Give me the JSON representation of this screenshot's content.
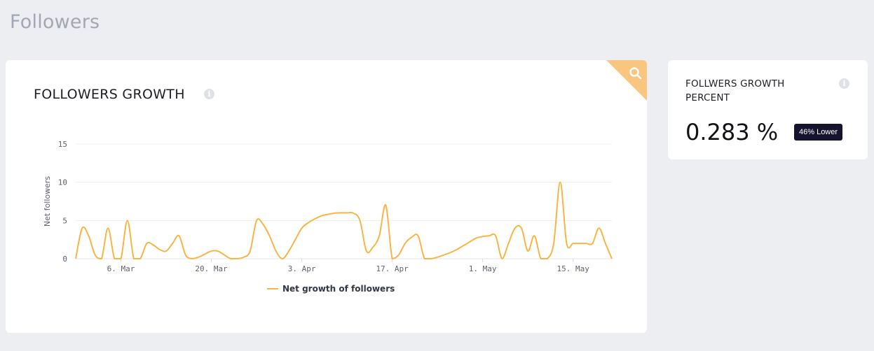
{
  "page": {
    "title": "Followers"
  },
  "growth_card": {
    "title": "FOLLOWERS GROWTH",
    "info_icon": "info-icon",
    "zoom_icon": "search-icon",
    "accent_color": "#f8c67f"
  },
  "percent_card": {
    "title": "FOLLWERS GROWTH PERCENT",
    "info_icon": "info-icon",
    "value": "0.283 %",
    "badge": "46% Lower",
    "badge_color": "#15132e"
  },
  "chart_data": {
    "type": "line",
    "ylabel": "Net followers",
    "xlabel": "",
    "ylim": [
      0,
      15
    ],
    "y_ticks": [
      0,
      5,
      10,
      15
    ],
    "x_ticks": [
      "6. Mar",
      "20. Mar",
      "3. Apr",
      "17. Apr",
      "1. May",
      "15. May"
    ],
    "x_tick_days": [
      6,
      20,
      34,
      48,
      62,
      76
    ],
    "grid": true,
    "legend_position": "bottom-center",
    "series": [
      {
        "name": "Net growth of followers",
        "color": "#f7b546",
        "points": [
          [
            -1,
            0
          ],
          [
            0,
            4
          ],
          [
            1,
            3
          ],
          [
            2,
            0.5
          ],
          [
            3,
            0
          ],
          [
            4,
            4
          ],
          [
            5,
            0
          ],
          [
            6,
            0
          ],
          [
            7,
            5
          ],
          [
            8,
            0
          ],
          [
            9,
            0
          ],
          [
            10,
            2
          ],
          [
            11,
            1.8
          ],
          [
            12,
            1.2
          ],
          [
            13,
            1
          ],
          [
            14,
            2
          ],
          [
            15,
            3
          ],
          [
            16,
            0.5
          ],
          [
            17,
            0
          ],
          [
            18,
            0.2
          ],
          [
            19,
            0.6
          ],
          [
            20,
            1
          ],
          [
            21,
            1
          ],
          [
            22,
            0.5
          ],
          [
            23,
            0
          ],
          [
            24,
            0
          ],
          [
            25,
            0.2
          ],
          [
            26,
            1
          ],
          [
            27,
            5
          ],
          [
            28,
            4.5
          ],
          [
            29,
            3
          ],
          [
            30,
            1
          ],
          [
            31,
            0
          ],
          [
            32,
            1
          ],
          [
            33,
            2.5
          ],
          [
            34,
            4
          ],
          [
            35,
            4.7
          ],
          [
            36,
            5.2
          ],
          [
            37,
            5.6
          ],
          [
            38,
            5.8
          ],
          [
            39,
            5.95
          ],
          [
            40,
            6
          ],
          [
            41,
            6
          ],
          [
            42,
            5.95
          ],
          [
            43,
            5
          ],
          [
            44,
            1
          ],
          [
            45,
            1.5
          ],
          [
            46,
            3
          ],
          [
            47,
            7
          ],
          [
            48,
            0
          ],
          [
            49,
            0.5
          ],
          [
            50,
            2
          ],
          [
            51,
            2.8
          ],
          [
            52,
            3
          ],
          [
            53,
            0
          ],
          [
            54,
            0
          ],
          [
            55,
            0.2
          ],
          [
            56,
            0.5
          ],
          [
            57,
            0.8
          ],
          [
            58,
            1.2
          ],
          [
            59,
            1.7
          ],
          [
            60,
            2.2
          ],
          [
            61,
            2.7
          ],
          [
            62,
            2.9
          ],
          [
            63,
            3
          ],
          [
            64,
            3
          ],
          [
            65,
            0
          ],
          [
            66,
            2
          ],
          [
            67,
            4
          ],
          [
            68,
            4
          ],
          [
            69,
            1
          ],
          [
            70,
            3
          ],
          [
            71,
            0
          ],
          [
            72,
            0
          ],
          [
            73,
            2
          ],
          [
            74,
            10
          ],
          [
            75,
            2
          ],
          [
            76,
            2
          ],
          [
            77,
            2
          ],
          [
            78,
            2
          ],
          [
            79,
            2
          ],
          [
            80,
            4
          ],
          [
            81,
            2
          ],
          [
            82,
            0
          ]
        ]
      }
    ]
  }
}
